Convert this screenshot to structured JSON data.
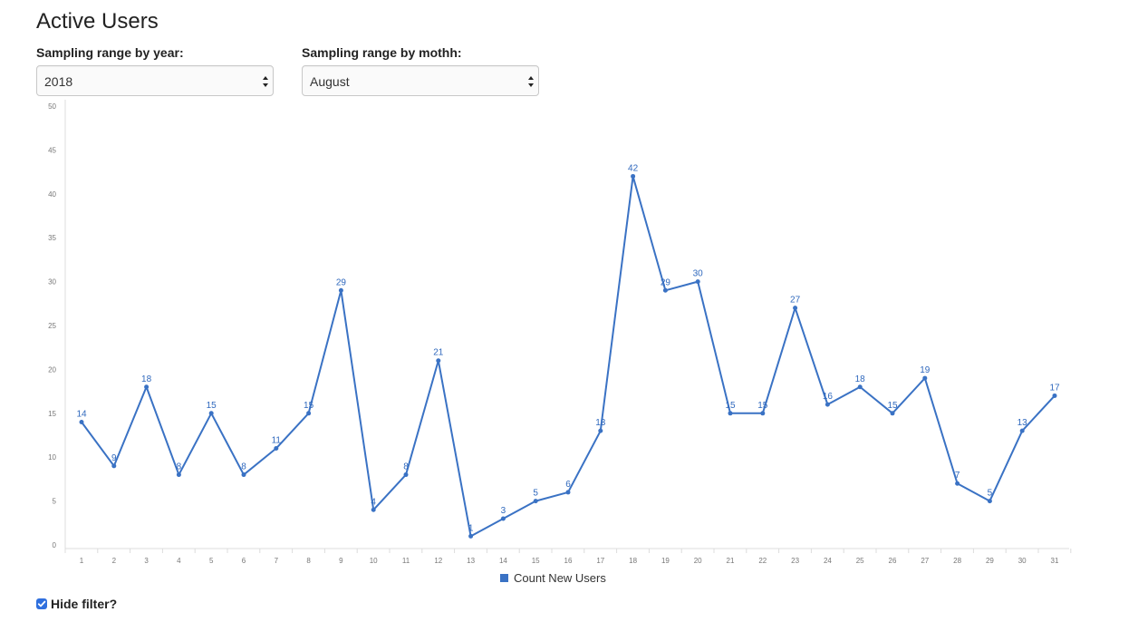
{
  "page": {
    "title": "Active Users"
  },
  "filters": {
    "year": {
      "label": "Sampling range by year:",
      "selected": "2018"
    },
    "month": {
      "label": "Sampling range by mothh:",
      "selected": "August"
    }
  },
  "hide_filter": {
    "label": "Hide filter?",
    "checked": true
  },
  "colors": {
    "series": "#3a72c4",
    "label": "#2f68bd",
    "axis": "#dcdcdc",
    "checkbox": "#2f6fde"
  },
  "icons": {
    "select_arrows": "up-down-arrows-icon",
    "checkbox": "checkmark-icon",
    "legend": "square-marker-icon"
  },
  "chart_data": {
    "type": "line",
    "title": "",
    "xlabel": "",
    "ylabel": "",
    "categories": [
      "1",
      "2",
      "3",
      "4",
      "5",
      "6",
      "7",
      "8",
      "9",
      "10",
      "11",
      "12",
      "13",
      "14",
      "15",
      "16",
      "17",
      "18",
      "19",
      "20",
      "21",
      "22",
      "23",
      "24",
      "25",
      "26",
      "27",
      "28",
      "29",
      "30",
      "31"
    ],
    "series": [
      {
        "name": "Count New Users",
        "values": [
          14,
          9,
          18,
          8,
          15,
          8,
          11,
          15,
          29,
          4,
          8,
          21,
          1,
          3,
          5,
          6,
          13,
          42,
          29,
          30,
          15,
          15,
          27,
          16,
          18,
          15,
          19,
          7,
          5,
          13,
          17
        ]
      }
    ],
    "ylim": [
      0,
      50
    ],
    "yticks": [
      "0",
      "5",
      "10",
      "15",
      "20",
      "25",
      "30",
      "35",
      "40",
      "45",
      "50"
    ],
    "grid": false,
    "data_labels": true,
    "legend_position": "bottom"
  }
}
